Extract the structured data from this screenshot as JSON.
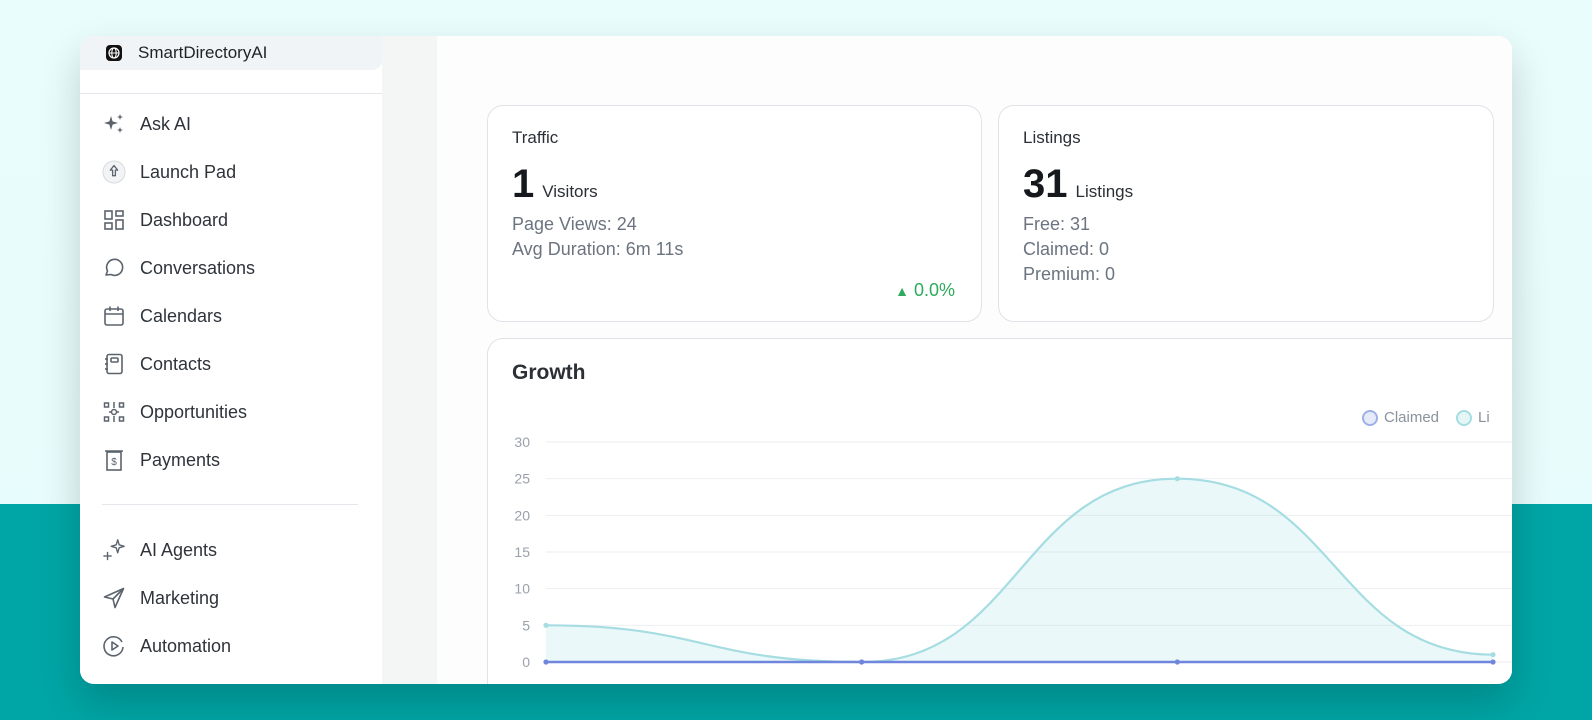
{
  "brand": {
    "label": "SmartDirectoryAI",
    "icon": "globe-icon"
  },
  "nav": {
    "group1": [
      {
        "label": "Ask AI",
        "icon": "sparkles-icon"
      },
      {
        "label": "Launch Pad",
        "icon": "rocket-icon"
      },
      {
        "label": "Dashboard",
        "icon": "grid-icon"
      },
      {
        "label": "Conversations",
        "icon": "chat-icon"
      },
      {
        "label": "Calendars",
        "icon": "calendar-icon"
      },
      {
        "label": "Contacts",
        "icon": "contacts-book-icon"
      },
      {
        "label": "Opportunities",
        "icon": "opportunities-icon"
      },
      {
        "label": "Payments",
        "icon": "invoice-icon"
      }
    ],
    "group2": [
      {
        "label": "AI Agents",
        "icon": "ai-sparkle-icon"
      },
      {
        "label": "Marketing",
        "icon": "send-icon"
      },
      {
        "label": "Automation",
        "icon": "play-circle-icon"
      }
    ]
  },
  "traffic": {
    "title": "Traffic",
    "value": "1",
    "unit": "Visitors",
    "page_views": "Page Views: 24",
    "avg_duration": "Avg Duration: 6m 11s",
    "delta": "0.0%",
    "delta_icon": "▲"
  },
  "listings": {
    "title": "Listings",
    "value": "31",
    "unit": "Listings",
    "free": "Free: 31",
    "claimed": "Claimed: 0",
    "premium": "Premium: 0"
  },
  "growth": {
    "title": "Growth",
    "legend": [
      {
        "name": "Claimed",
        "color": "#7b8fe0"
      },
      {
        "name": "Li",
        "color": "#9ed8df"
      }
    ]
  },
  "chart_data": {
    "type": "area",
    "x": [
      0,
      1,
      2,
      3
    ],
    "ylim": [
      0,
      30
    ],
    "yticks": [
      0,
      5,
      10,
      15,
      20,
      25,
      30
    ],
    "grid": true,
    "legend_position": "top-right",
    "series": [
      {
        "name": "Claimed",
        "values": [
          0,
          0,
          0,
          0
        ],
        "color": "#6f86dc"
      },
      {
        "name": "Li",
        "values": [
          5,
          0,
          25,
          1
        ],
        "color": "#a5dde2"
      }
    ]
  }
}
